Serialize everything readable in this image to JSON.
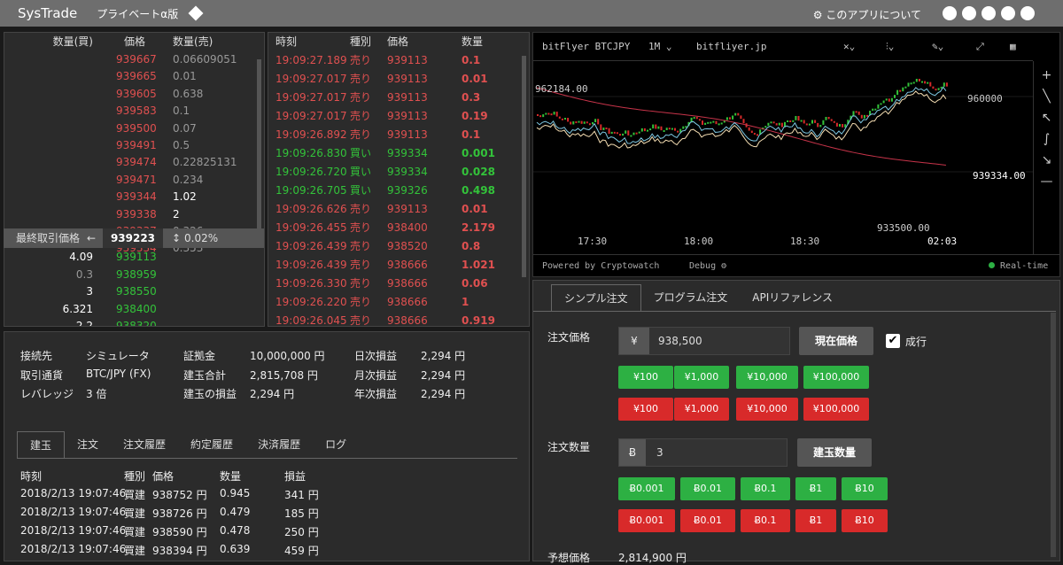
{
  "app": {
    "title": "SysTrade",
    "plan": "プライベートα版",
    "about": "このアプリについて"
  },
  "orderbook": {
    "headers": {
      "buy_qty": "数量(買)",
      "price": "価格",
      "sell_qty": "数量(売)"
    },
    "asks": [
      {
        "price": "939667",
        "qty": "0.06609051"
      },
      {
        "price": "939665",
        "qty": "0.01"
      },
      {
        "price": "939605",
        "qty": "0.638"
      },
      {
        "price": "939583",
        "qty": "0.1"
      },
      {
        "price": "939500",
        "qty": "0.07"
      },
      {
        "price": "939491",
        "qty": "0.5"
      },
      {
        "price": "939474",
        "qty": "0.22825131"
      },
      {
        "price": "939471",
        "qty": "0.234"
      },
      {
        "price": "939344",
        "qty": "1.02"
      },
      {
        "price": "939338",
        "qty": "2"
      },
      {
        "price": "939337",
        "qty": "0.326"
      },
      {
        "price": "939334",
        "qty": "0.353"
      }
    ],
    "last": {
      "label": "最終取引価格",
      "price": "939223",
      "change": "0.02%"
    },
    "bids": [
      {
        "qty": "4.09",
        "price": "939113"
      },
      {
        "qty": "0.3",
        "price": "938959"
      },
      {
        "qty": "3",
        "price": "938550"
      },
      {
        "qty": "6.321",
        "price": "938400"
      },
      {
        "qty": "2.2",
        "price": "938320"
      }
    ]
  },
  "trades": {
    "headers": {
      "time": "時刻",
      "side": "種別",
      "price": "価格",
      "qty": "数量"
    },
    "rows": [
      {
        "time": "19:09:27.189",
        "side": "売り",
        "price": "939113",
        "qty": "0.1",
        "buy": false
      },
      {
        "time": "19:09:27.017",
        "side": "売り",
        "price": "939113",
        "qty": "0.01",
        "buy": false
      },
      {
        "time": "19:09:27.017",
        "side": "売り",
        "price": "939113",
        "qty": "0.3",
        "buy": false
      },
      {
        "time": "19:09:27.017",
        "side": "売り",
        "price": "939113",
        "qty": "0.19",
        "buy": false
      },
      {
        "time": "19:09:26.892",
        "side": "売り",
        "price": "939113",
        "qty": "0.1",
        "buy": false
      },
      {
        "time": "19:09:26.830",
        "side": "買い",
        "price": "939334",
        "qty": "0.001",
        "buy": true
      },
      {
        "time": "19:09:26.720",
        "side": "買い",
        "price": "939334",
        "qty": "0.028",
        "buy": true
      },
      {
        "time": "19:09:26.705",
        "side": "買い",
        "price": "939326",
        "qty": "0.498",
        "buy": true
      },
      {
        "time": "19:09:26.626",
        "side": "売り",
        "price": "939113",
        "qty": "0.01",
        "buy": false
      },
      {
        "time": "19:09:26.455",
        "side": "売り",
        "price": "938400",
        "qty": "2.179",
        "buy": false
      },
      {
        "time": "19:09:26.439",
        "side": "売り",
        "price": "938520",
        "qty": "0.8",
        "buy": false
      },
      {
        "time": "19:09:26.439",
        "side": "売り",
        "price": "938666",
        "qty": "1.021",
        "buy": false
      },
      {
        "time": "19:09:26.330",
        "side": "売り",
        "price": "938666",
        "qty": "0.06",
        "buy": false
      },
      {
        "time": "19:09:26.220",
        "side": "売り",
        "price": "938666",
        "qty": "1",
        "buy": false
      },
      {
        "time": "19:09:26.045",
        "side": "売り",
        "price": "938666",
        "qty": "0.919",
        "buy": false
      }
    ]
  },
  "chart": {
    "symbol": "bitFlyer BTCJPY",
    "interval": "1M",
    "source": "bitfliyer.jp",
    "high": "962184.00",
    "low": "933500.00",
    "last": "939334.00",
    "level": "960000",
    "times": [
      "17:30",
      "18:00",
      "18:30",
      "02:03"
    ],
    "powered": "Powered by Cryptowatch",
    "debug": "Debug",
    "realtime": "Real-time"
  },
  "account": {
    "conn_label": "接続先",
    "conn": "シミュレータ",
    "cur_label": "取引通貨",
    "cur": "BTC/JPY (FX)",
    "lev_label": "レバレッジ",
    "lev": "3 倍",
    "margin_label": "証拠金",
    "margin": "10,000,000 円",
    "pos_label": "建玉合計",
    "pos": "2,815,708 円",
    "pl_label": "建玉の損益",
    "pl": "2,294 円",
    "daily_label": "日次損益",
    "daily": "2,294 円",
    "monthly_label": "月次損益",
    "monthly": "2,294 円",
    "yearly_label": "年次損益",
    "yearly": "2,294 円",
    "tabs": [
      "建玉",
      "注文",
      "注文履歴",
      "約定履歴",
      "決済履歴",
      "ログ"
    ],
    "cols": {
      "time": "時刻",
      "side": "種別",
      "price": "価格",
      "qty": "数量",
      "pl": "損益"
    },
    "positions": [
      {
        "time": "2018/2/13 19:07:46",
        "side": "買建",
        "price": "938752 円",
        "qty": "0.945",
        "pl": "341 円"
      },
      {
        "time": "2018/2/13 19:07:46",
        "side": "買建",
        "price": "938726 円",
        "qty": "0.479",
        "pl": "185 円"
      },
      {
        "time": "2018/2/13 19:07:46",
        "side": "買建",
        "price": "938590 円",
        "qty": "0.478",
        "pl": "250 円"
      },
      {
        "time": "2018/2/13 19:07:46",
        "side": "買建",
        "price": "938394 円",
        "qty": "0.639",
        "pl": "459 円"
      }
    ]
  },
  "order": {
    "tabs": [
      "シンプル注文",
      "プログラム注文",
      "APIリファレンス"
    ],
    "price_label": "注文価格",
    "yen": "¥",
    "price": "938,500",
    "current_btn": "現在価格",
    "market": "成行",
    "price_steps": [
      "¥100",
      "¥1,000",
      "¥10,000",
      "¥100,000"
    ],
    "qty_label": "注文数量",
    "btc": "Ƀ",
    "qty": "3",
    "pos_btn": "建玉数量",
    "qty_steps": [
      "Ƀ0.001",
      "Ƀ0.01",
      "Ƀ0.1",
      "Ƀ1",
      "Ƀ10"
    ],
    "est_label": "予想価格",
    "est": "2,814,900 円"
  }
}
